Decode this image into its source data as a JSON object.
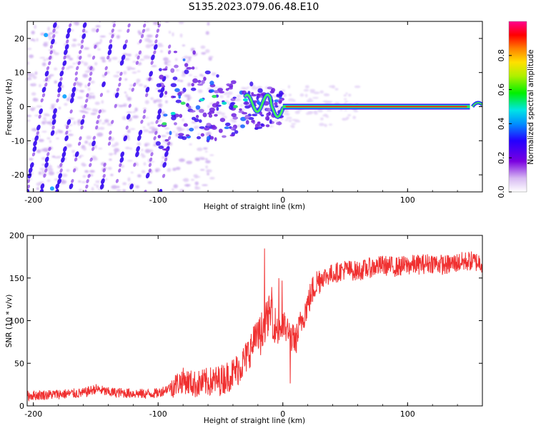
{
  "title": "S135.2023.079.06.48.E10",
  "chart_data": [
    {
      "type": "heatmap",
      "xlabel": "Height of straight line (km)",
      "ylabel": "Frequency (Hz)",
      "xlim": [
        -205,
        160
      ],
      "ylim": [
        -25,
        25
      ],
      "xticks": [
        -200,
        -100,
        0,
        100
      ],
      "yticks": [
        -20,
        -10,
        0,
        10,
        20
      ],
      "colorbar": {
        "label": "Normalized spectral amplitude",
        "range": [
          0,
          1
        ],
        "ticks": [
          "0.0",
          "0.2",
          "0.4",
          "0.6",
          "0.8"
        ],
        "colormap": "rainbow (white → purple → blue → cyan → green → yellow → orange → red → magenta)"
      },
      "features": {
        "tone_frequency_hz": 0,
        "tone_x_range_km": [
          0,
          150
        ],
        "diagonal_streaks_x_range_km": [
          -205,
          -95
        ],
        "noisy_transition_x_range_km": [
          -100,
          0
        ]
      }
    },
    {
      "type": "line",
      "xlabel": "Height of straight line (km)",
      "ylabel": "SNR (10 * v/v)",
      "xlim": [
        -205,
        160
      ],
      "ylim": [
        0,
        200
      ],
      "xticks": [
        -200,
        -100,
        0,
        100
      ],
      "yticks": [
        0,
        50,
        100,
        150,
        200
      ],
      "line_color": "#f03030",
      "series": [
        {
          "x": [
            -205,
            -190,
            -175,
            -160,
            -150,
            -140,
            -125,
            -110,
            -100,
            -90,
            -80,
            -70,
            -60,
            -50,
            -40,
            -35,
            -30,
            -25,
            -20,
            -15,
            -10,
            -5,
            0,
            5,
            10,
            15,
            20,
            25,
            30,
            40,
            50,
            60,
            70,
            80,
            90,
            100,
            110,
            120,
            130,
            140,
            150,
            160
          ],
          "y": [
            12,
            13,
            14,
            15,
            20,
            16,
            15,
            14,
            15,
            22,
            30,
            25,
            28,
            30,
            38,
            45,
            55,
            70,
            80,
            95,
            110,
            90,
            95,
            85,
            75,
            100,
            120,
            140,
            150,
            155,
            160,
            158,
            162,
            165,
            163,
            165,
            166,
            168,
            165,
            168,
            170,
            168
          ]
        }
      ]
    }
  ]
}
